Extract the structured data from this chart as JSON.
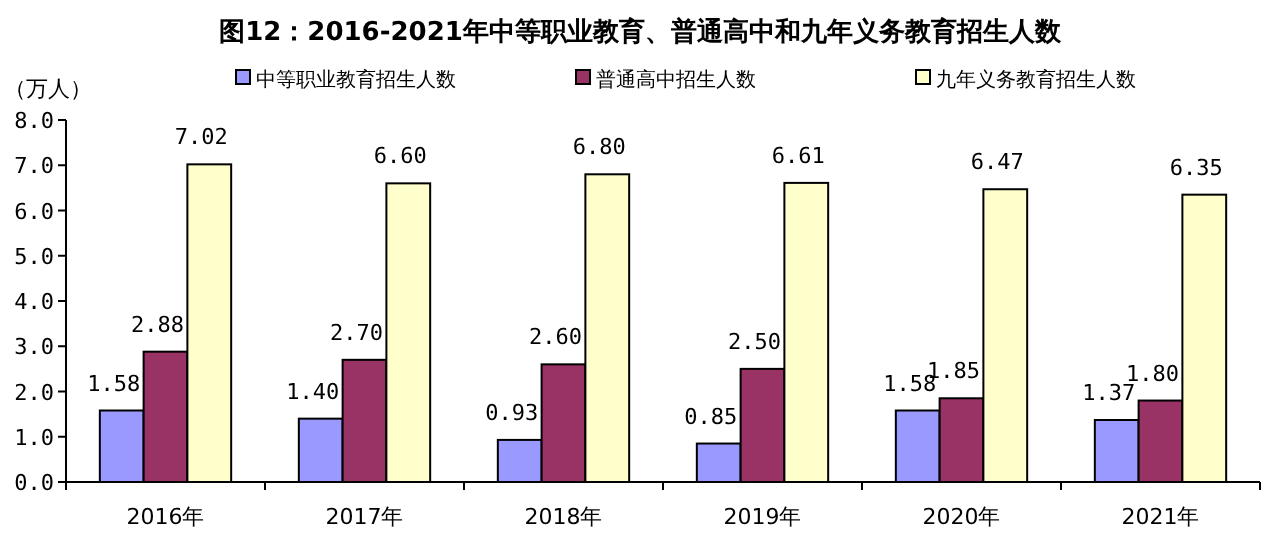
{
  "chart_data": {
    "type": "bar",
    "title": "图12：2016-2021年中等职业教育、普通高中和九年义务教育招生人数",
    "ylabel": "（万人）",
    "categories": [
      "2016年",
      "2017年",
      "2018年",
      "2019年",
      "2020年",
      "2021年"
    ],
    "series": [
      {
        "name": "中等职业教育招生人数",
        "color": "#9999ff",
        "values": [
          1.58,
          1.4,
          0.93,
          0.85,
          1.58,
          1.37
        ],
        "value_labels": [
          "1.58",
          "1.40",
          "0.93",
          "0.85",
          "1.58",
          "1.37"
        ]
      },
      {
        "name": "普通高中招生人数",
        "color": "#993366",
        "values": [
          2.88,
          2.7,
          2.6,
          2.5,
          1.85,
          1.8
        ],
        "value_labels": [
          "2.88",
          "2.70",
          "2.60",
          "2.50",
          "1.85",
          "1.80"
        ]
      },
      {
        "name": "九年义务教育招生人数",
        "color": "#ffffcc",
        "values": [
          7.02,
          6.6,
          6.8,
          6.61,
          6.47,
          6.35
        ],
        "value_labels": [
          "7.02",
          "6.60",
          "6.80",
          "6.61",
          "6.47",
          "6.35"
        ]
      }
    ],
    "ylim": [
      0,
      8
    ],
    "yticks": [
      {
        "value": 0,
        "label": "0.0"
      },
      {
        "value": 1,
        "label": "1.0"
      },
      {
        "value": 2,
        "label": "2.0"
      },
      {
        "value": 3,
        "label": "3.0"
      },
      {
        "value": 4,
        "label": "4.0"
      },
      {
        "value": 5,
        "label": "5.0"
      },
      {
        "value": 6,
        "label": "6.0"
      },
      {
        "value": 7,
        "label": "7.0"
      },
      {
        "value": 8,
        "label": "8.0"
      }
    ],
    "legend": "top"
  }
}
